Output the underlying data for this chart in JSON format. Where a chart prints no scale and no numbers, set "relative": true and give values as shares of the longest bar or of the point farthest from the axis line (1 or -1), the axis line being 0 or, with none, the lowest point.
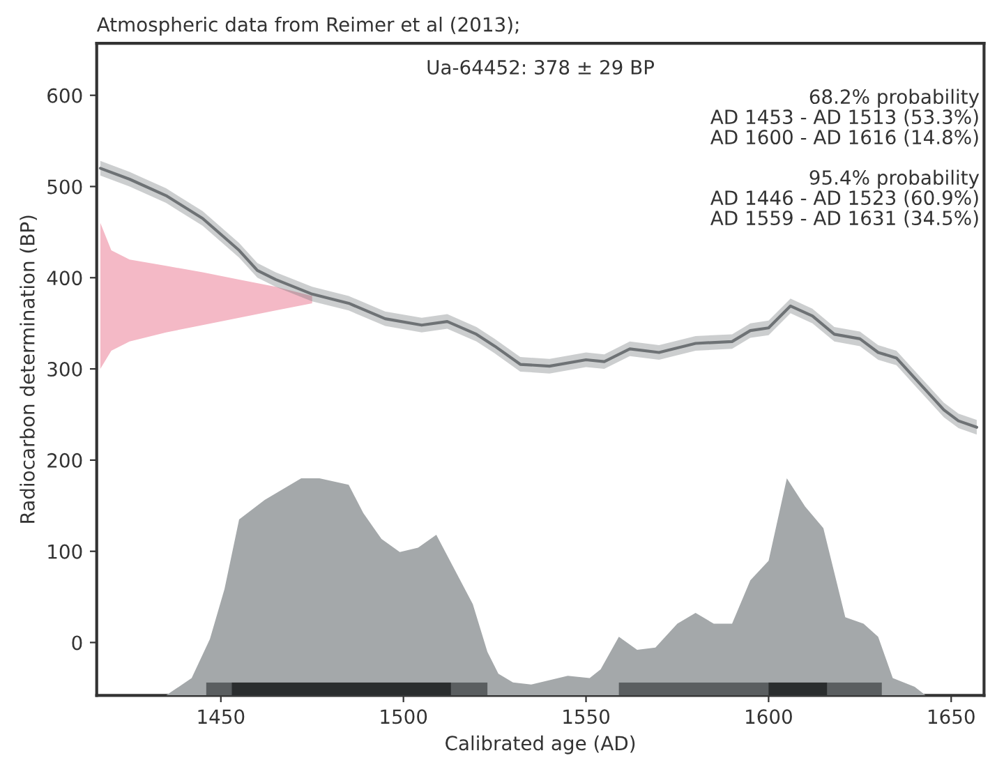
{
  "chart_data": [
    {
      "type": "line",
      "title": "Atmospheric data from Reimer et al (2013);",
      "xlabel": "Calibrated age (AD)",
      "ylabel": "Radiocarbon determination (BP)",
      "series": [
        {
          "type": "area",
          "color": "#f4b9c6",
          "x": [
            1417,
            1420,
            1425,
            1435,
            1445,
            1455,
            1465,
            1475
          ],
          "values": [
            null,
            null,
            null,
            null,
            null,
            null,
            null,
            null
          ],
          "lower": [
            300,
            320,
            330,
            340,
            348,
            356,
            364,
            372
          ],
          "upper": [
            460,
            430,
            420,
            413,
            406,
            398,
            390,
            380
          ]
        },
        {
          "type": "line",
          "color": "#6e7275",
          "x": [
            1417,
            1425,
            1435,
            1445,
            1455,
            1460,
            1465,
            1475,
            1485,
            1495,
            1505,
            1512,
            1520,
            1525,
            1532,
            1540,
            1550,
            1555,
            1562,
            1570,
            1580,
            1590,
            1595,
            1600,
            1606,
            1612,
            1618,
            1625,
            1630,
            1635,
            1640,
            1648,
            1652,
            1657
          ],
          "values": [
            520,
            508,
            490,
            465,
            430,
            408,
            398,
            382,
            372,
            355,
            348,
            352,
            338,
            325,
            305,
            303,
            310,
            308,
            322,
            318,
            328,
            330,
            342,
            345,
            369,
            358,
            338,
            333,
            318,
            312,
            290,
            255,
            243,
            236
          ],
          "lower": [
            512,
            500,
            482,
            457,
            422,
            400,
            390,
            374,
            364,
            347,
            340,
            344,
            330,
            317,
            297,
            295,
            302,
            300,
            314,
            310,
            320,
            322,
            334,
            337,
            361,
            350,
            330,
            325,
            310,
            304,
            282,
            247,
            235,
            228
          ],
          "upper": [
            528,
            516,
            498,
            473,
            438,
            416,
            406,
            390,
            380,
            363,
            356,
            360,
            346,
            333,
            313,
            311,
            318,
            316,
            330,
            326,
            336,
            338,
            350,
            353,
            377,
            366,
            346,
            341,
            326,
            320,
            298,
            263,
            251,
            244
          ]
        }
      ],
      "annotations": [
        "Ua-64452: 378 ± 29 BP",
        "68.2% probability\nAD 1453 - AD 1513 (53.3%)\nAD 1600 - AD 1616 (14.8%)\n\n95.4% probability\nAD 1446 - AD 1523 (60.9%)\nAD 1559 - AD 1631 (34.5%)"
      ],
      "xlim": [
        1416,
        1659
      ],
      "ylim": [
        -58,
        657
      ],
      "xticks": [
        1450,
        1500,
        1550,
        1600,
        1650
      ],
      "yticks": [
        0,
        100,
        200,
        300,
        400,
        500,
        600
      ]
    },
    {
      "type": "area",
      "relative": true,
      "xlim": [
        1416,
        1659
      ],
      "tick_labels": false,
      "series": [
        {
          "color": "#a4a8aa",
          "x": [
            1435,
            1442,
            1447,
            1451,
            1455,
            1462,
            1467,
            1472,
            1477,
            1485,
            1489,
            1494,
            1499,
            1504,
            1509,
            1514,
            1519,
            1523,
            1526,
            1530,
            1535,
            1540,
            1545,
            1551,
            1554,
            1559,
            1564,
            1569,
            1575,
            1580,
            1585,
            1590,
            1595,
            1600,
            1605,
            1610,
            1615,
            1621,
            1626,
            1630,
            1634,
            1640,
            1643
          ],
          "values": [
            0,
            0.08,
            0.26,
            0.49,
            0.81,
            0.9,
            0.95,
            1,
            1,
            0.97,
            0.84,
            0.72,
            0.66,
            0.68,
            0.74,
            0.58,
            0.42,
            0.2,
            0.1,
            0.06,
            0.05,
            0.07,
            0.09,
            0.08,
            0.12,
            0.27,
            0.21,
            0.22,
            0.33,
            0.38,
            0.33,
            0.33,
            0.53,
            0.62,
            1,
            0.87,
            0.77,
            0.36,
            0.33,
            0.27,
            0.08,
            0.04,
            0
          ]
        }
      ]
    },
    {
      "type": "bar",
      "orientation": "horizontal",
      "categories": [
        null
      ],
      "xlim": [
        1416,
        1659
      ],
      "tick_labels": false,
      "series": [
        {
          "color": "#5a5e60",
          "base": [
            1446
          ],
          "values": [
            77
          ]
        },
        {
          "color": "#5a5e60",
          "base": [
            1559
          ],
          "values": [
            72
          ]
        },
        {
          "color": "#2a2d2e",
          "base": [
            1453
          ],
          "values": [
            60
          ]
        },
        {
          "color": "#2a2d2e",
          "base": [
            1600
          ],
          "values": [
            16
          ]
        }
      ]
    }
  ]
}
